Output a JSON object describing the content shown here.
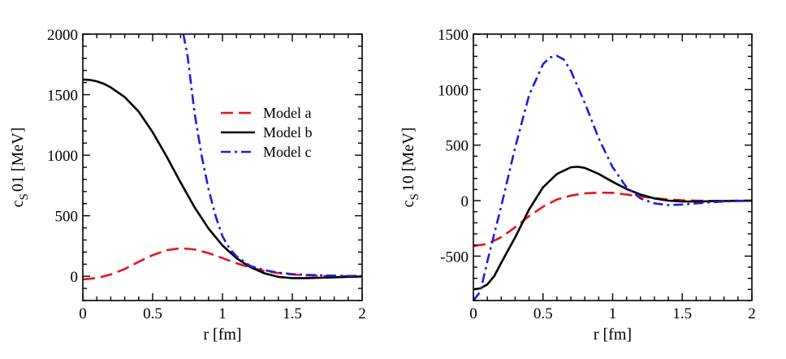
{
  "chart_data": [
    {
      "type": "line",
      "xlabel": "r [fm]",
      "ylabel_main": "c",
      "ylabel_sub": "S",
      "ylabel_rest": "01 [MeV]",
      "xlim": [
        0,
        2
      ],
      "ylim": [
        -200,
        2000
      ],
      "xticks": [
        0,
        0.5,
        1,
        1.5,
        2
      ],
      "xtick_labels": [
        "0",
        "0.5",
        "1",
        "1.5",
        "2"
      ],
      "yticks": [
        0,
        500,
        1000,
        1500,
        2000
      ],
      "ytick_labels": [
        "0",
        "500",
        "1000",
        "1500",
        "2000"
      ],
      "x_minor_step": 0.1,
      "y_minor_step": 100,
      "legend": {
        "position": "top-right",
        "entries": [
          {
            "label": "Model a",
            "series": "model_a"
          },
          {
            "label": "Model b",
            "series": "model_b"
          },
          {
            "label": "Model c",
            "series": "model_c"
          }
        ]
      },
      "series": [
        {
          "id": "model_a",
          "name": "Model a",
          "color": "#e8141b",
          "dash": "long-dash",
          "x": [
            0,
            0.1,
            0.2,
            0.3,
            0.4,
            0.5,
            0.6,
            0.7,
            0.8,
            0.9,
            1.0,
            1.1,
            1.2,
            1.3,
            1.4,
            1.5,
            1.6,
            1.7,
            1.8,
            1.9,
            2.0
          ],
          "y": [
            -25,
            -15,
            15,
            60,
            120,
            175,
            215,
            232,
            222,
            192,
            150,
            108,
            72,
            45,
            27,
            15,
            8,
            4,
            2,
            1,
            0
          ]
        },
        {
          "id": "model_b",
          "name": "Model b",
          "color": "#000000",
          "dash": "solid",
          "x": [
            0,
            0.05,
            0.1,
            0.15,
            0.2,
            0.3,
            0.4,
            0.5,
            0.6,
            0.7,
            0.8,
            0.9,
            1.0,
            1.1,
            1.2,
            1.3,
            1.4,
            1.5,
            1.6,
            1.7,
            1.8,
            1.9,
            2.0
          ],
          "y": [
            1625,
            1622,
            1610,
            1590,
            1560,
            1480,
            1360,
            1190,
            990,
            775,
            570,
            395,
            255,
            150,
            75,
            25,
            -5,
            -15,
            -15,
            -12,
            -8,
            -4,
            -2
          ]
        },
        {
          "id": "model_c",
          "name": "Model c",
          "color": "#1d1de0",
          "dash": "dash-dot",
          "x": [
            0.72,
            0.75,
            0.8,
            0.85,
            0.9,
            0.95,
            1.0,
            1.05,
            1.1,
            1.2,
            1.3,
            1.4,
            1.5,
            1.6,
            1.7,
            1.8,
            1.9,
            2.0
          ],
          "y": [
            2000,
            1820,
            1350,
            1000,
            720,
            500,
            330,
            230,
            165,
            85,
            50,
            30,
            18,
            12,
            8,
            5,
            3,
            2
          ]
        }
      ]
    },
    {
      "type": "line",
      "xlabel": "r [fm]",
      "ylabel_main": "c",
      "ylabel_sub": "S",
      "ylabel_rest": "10 [MeV]",
      "xlim": [
        0,
        2
      ],
      "ylim": [
        -900,
        1500
      ],
      "xticks": [
        0,
        0.5,
        1,
        1.5,
        2
      ],
      "xtick_labels": [
        "0",
        "0.5",
        "1",
        "1.5",
        "2"
      ],
      "yticks": [
        -500,
        0,
        500,
        1000,
        1500
      ],
      "ytick_labels": [
        "-500",
        "0",
        "500",
        "1000",
        "1500"
      ],
      "x_minor_step": 0.1,
      "y_minor_step": 100,
      "series": [
        {
          "id": "model_a",
          "name": "Model a",
          "color": "#e8141b",
          "dash": "long-dash",
          "x": [
            0,
            0.1,
            0.2,
            0.3,
            0.4,
            0.5,
            0.6,
            0.7,
            0.8,
            0.9,
            1.0,
            1.1,
            1.2,
            1.3,
            1.4,
            1.5,
            1.6,
            1.7,
            1.8,
            1.9,
            2.0
          ],
          "y": [
            -410,
            -390,
            -330,
            -240,
            -140,
            -55,
            10,
            45,
            65,
            72,
            70,
            55,
            38,
            22,
            10,
            3,
            0,
            -2,
            -2,
            -1,
            0
          ]
        },
        {
          "id": "model_b",
          "name": "Model b",
          "color": "#000000",
          "dash": "solid",
          "x": [
            0,
            0.05,
            0.1,
            0.15,
            0.2,
            0.3,
            0.4,
            0.5,
            0.6,
            0.7,
            0.75,
            0.8,
            0.9,
            1.0,
            1.1,
            1.2,
            1.3,
            1.4,
            1.5,
            1.6,
            1.7,
            1.8,
            1.9,
            2.0
          ],
          "y": [
            -800,
            -790,
            -755,
            -680,
            -560,
            -330,
            -80,
            120,
            240,
            300,
            305,
            295,
            240,
            170,
            105,
            55,
            20,
            0,
            -8,
            -8,
            -6,
            -4,
            -2,
            -1
          ]
        },
        {
          "id": "model_c",
          "name": "Model c",
          "color": "#1d1de0",
          "dash": "dash-dot",
          "x": [
            0,
            0.05,
            0.1,
            0.2,
            0.3,
            0.4,
            0.5,
            0.55,
            0.6,
            0.65,
            0.7,
            0.8,
            0.9,
            1.0,
            1.1,
            1.2,
            1.3,
            1.4,
            1.5,
            1.6,
            1.7,
            1.8,
            1.9,
            2.0
          ],
          "y": [
            -900,
            -820,
            -550,
            -50,
            480,
            950,
            1230,
            1290,
            1305,
            1270,
            1170,
            880,
            560,
            300,
            120,
            20,
            -25,
            -40,
            -35,
            -25,
            -15,
            -8,
            -4,
            -2
          ]
        }
      ]
    }
  ]
}
